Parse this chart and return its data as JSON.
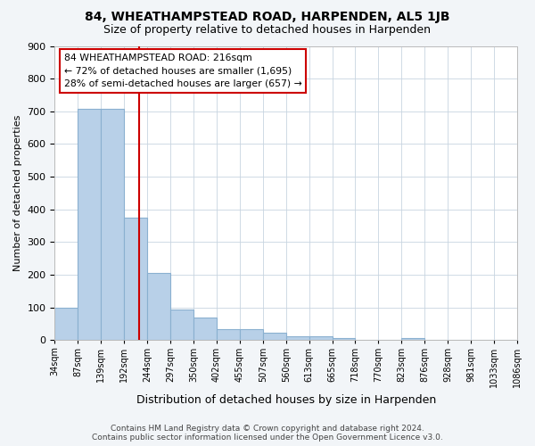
{
  "title": "84, WHEATHAMPSTEAD ROAD, HARPENDEN, AL5 1JB",
  "subtitle": "Size of property relative to detached houses in Harpenden",
  "xlabel": "Distribution of detached houses by size in Harpenden",
  "ylabel": "Number of detached properties",
  "bin_edges": [
    "34sqm",
    "87sqm",
    "139sqm",
    "192sqm",
    "244sqm",
    "297sqm",
    "350sqm",
    "402sqm",
    "455sqm",
    "507sqm",
    "560sqm",
    "613sqm",
    "665sqm",
    "718sqm",
    "770sqm",
    "823sqm",
    "876sqm",
    "928sqm",
    "981sqm",
    "1033sqm",
    "1086sqm"
  ],
  "values": [
    100,
    707,
    707,
    375,
    207,
    95,
    70,
    33,
    33,
    22,
    11,
    11,
    8,
    0,
    0,
    8,
    0,
    0,
    0,
    0
  ],
  "bar_color": "#b8d0e8",
  "bar_edge_color": "#8ab0d0",
  "vline_x": 3.65,
  "vline_color": "#cc0000",
  "annotation_text": "84 WHEATHAMPSTEAD ROAD: 216sqm\n← 72% of detached houses are smaller (1,695)\n28% of semi-detached houses are larger (657) →",
  "annotation_box_color": "#cc0000",
  "ylim": [
    0,
    900
  ],
  "yticks": [
    0,
    100,
    200,
    300,
    400,
    500,
    600,
    700,
    800,
    900
  ],
  "footer_line1": "Contains HM Land Registry data © Crown copyright and database right 2024.",
  "footer_line2": "Contains public sector information licensed under the Open Government Licence v3.0.",
  "bg_color": "#f2f5f8",
  "plot_bg_color": "#ffffff",
  "grid_color": "#c8d4e0",
  "title_fontsize": 10,
  "subtitle_fontsize": 9
}
